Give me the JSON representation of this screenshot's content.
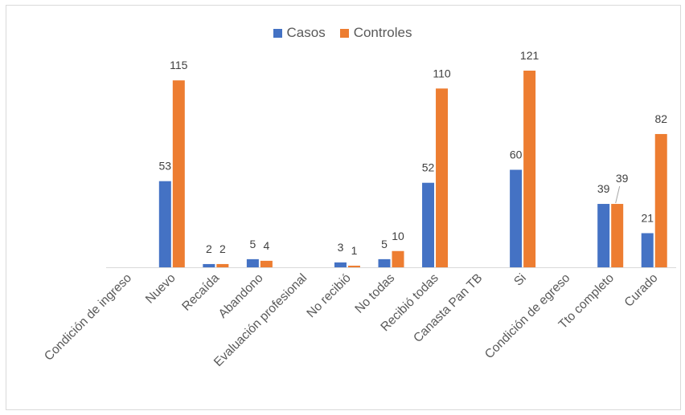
{
  "chart_data": {
    "type": "bar",
    "categories": [
      "Condición de ingreso",
      "Nuevo",
      "Recaída",
      "Abandono",
      "Evaluación profesional",
      "No recibió",
      "No todas",
      "Recibió todas",
      "Canasta Pan TB",
      "Si",
      "Condición de egreso",
      "Tto completo",
      "Curado"
    ],
    "series": [
      {
        "name": "Casos",
        "color": "#4472C4",
        "values": [
          null,
          53,
          2,
          5,
          null,
          3,
          5,
          52,
          null,
          60,
          null,
          39,
          21
        ]
      },
      {
        "name": "Controles",
        "color": "#ED7D31",
        "values": [
          null,
          115,
          2,
          4,
          null,
          1,
          10,
          110,
          null,
          121,
          null,
          39,
          82
        ]
      }
    ],
    "ylim": [
      0,
      121
    ],
    "legend_position": "top-center",
    "grid": false,
    "data_labels": true
  }
}
